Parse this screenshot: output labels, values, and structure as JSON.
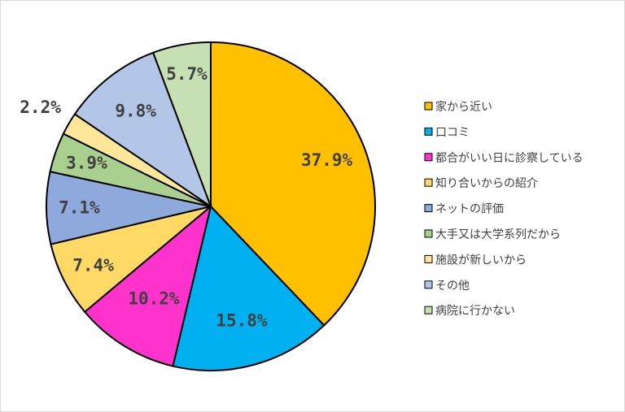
{
  "chart_data": {
    "type": "pie",
    "slices": [
      {
        "label": "家から近い",
        "value": 37.9,
        "value_label": "37.9%",
        "color": "#FFC000"
      },
      {
        "label": "口コミ",
        "value": 15.8,
        "value_label": "15.8%",
        "color": "#00B0F0"
      },
      {
        "label": "都合がいい日に診察している",
        "value": 10.2,
        "value_label": "10.2%",
        "color": "#FF33CC"
      },
      {
        "label": "知り合いからの紹介",
        "value": 7.4,
        "value_label": "7.4%",
        "color": "#FFD966"
      },
      {
        "label": "ネットの評価",
        "value": 7.1,
        "value_label": "7.1%",
        "color": "#8EA9DB"
      },
      {
        "label": "大手又は大学系列だから",
        "value": 3.9,
        "value_label": "3.9%",
        "color": "#A9D08E"
      },
      {
        "label": "施設が新しいから",
        "value": 2.2,
        "value_label": "2.2%",
        "color": "#FFE699"
      },
      {
        "label": "その他",
        "value": 9.8,
        "value_label": "9.8%",
        "color": "#B4C6E7"
      },
      {
        "label": "病院に行かない",
        "value": 5.7,
        "value_label": "5.7%",
        "color": "#C6E0B4"
      }
    ],
    "legend_position": "right",
    "start_angle": "12 o'clock",
    "direction": "clockwise"
  }
}
